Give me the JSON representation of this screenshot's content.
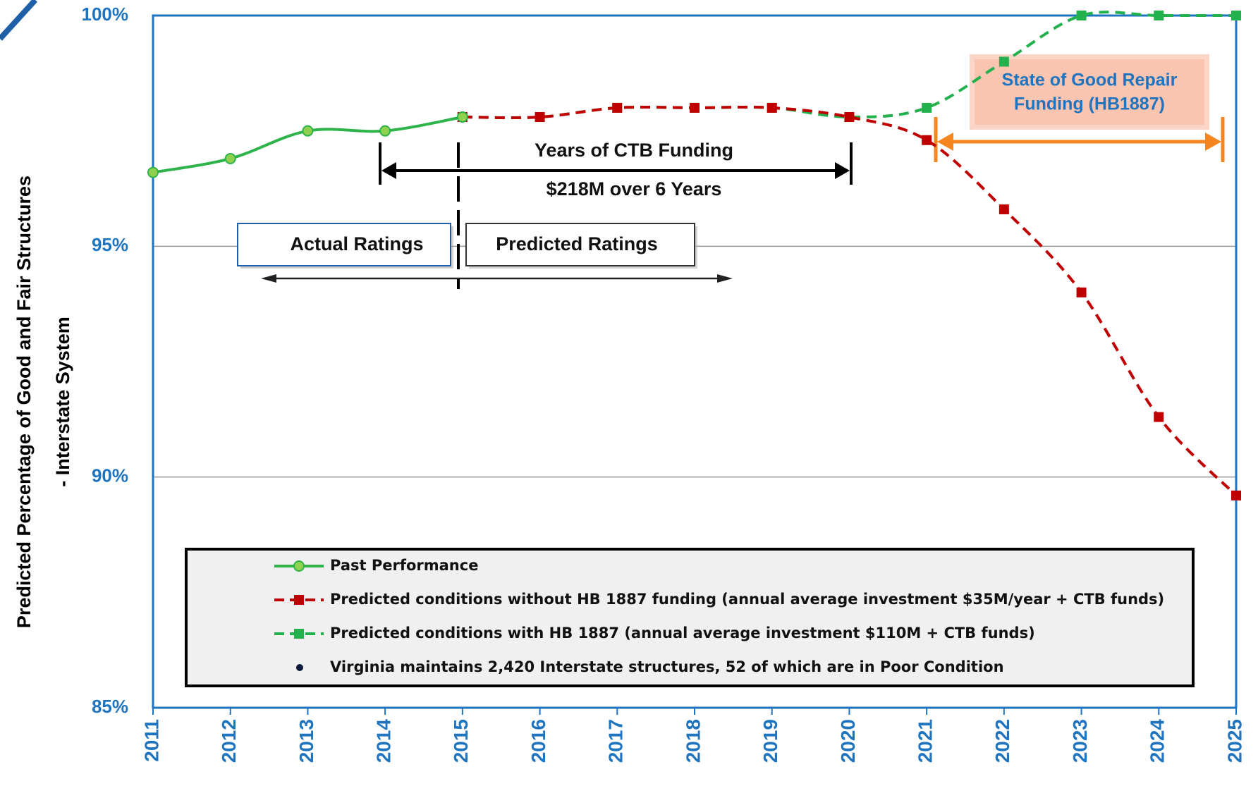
{
  "chart_data": {
    "type": "line",
    "y_label": [
      "Predicted Percentage of Good and Fair Structures",
      "- Interstate System"
    ],
    "x": [
      2011,
      2012,
      2013,
      2014,
      2015,
      2016,
      2017,
      2018,
      2019,
      2020,
      2021,
      2022,
      2023,
      2024,
      2025
    ],
    "xlim": [
      2011,
      2025
    ],
    "xticks": [
      2011,
      2012,
      2013,
      2014,
      2015,
      2016,
      2017,
      2018,
      2019,
      2020,
      2021,
      2022,
      2023,
      2024,
      2025
    ],
    "ylim": [
      85,
      100
    ],
    "yticks": [
      {
        "value": 85,
        "label": "85%"
      },
      {
        "value": 90,
        "label": "90%"
      },
      {
        "value": 95,
        "label": "95%"
      },
      {
        "value": 100,
        "label": "100%"
      }
    ],
    "grid": true,
    "series": [
      {
        "name": "Past Performance",
        "color": "#2db34a",
        "marker": "circle",
        "dashed": false,
        "values": [
          96.6,
          96.9,
          97.5,
          97.5,
          97.8,
          null,
          null,
          null,
          null,
          null,
          null,
          null,
          null,
          null,
          null
        ]
      },
      {
        "name": "Predicted conditions without HB 1887 funding (annual average investment $35M/year + CTB funds)",
        "color": "#c00000",
        "marker": "square",
        "dashed": true,
        "values": [
          null,
          null,
          null,
          null,
          97.8,
          97.8,
          98.0,
          98.0,
          98.0,
          97.8,
          97.3,
          95.8,
          94.0,
          91.3,
          89.6
        ]
      },
      {
        "name": "Predicted conditions with HB 1887 (annual average investment $110M + CTB funds)",
        "color": "#22b14c",
        "marker": "square",
        "dashed": true,
        "values": [
          null,
          null,
          null,
          null,
          97.8,
          97.8,
          98.0,
          98.0,
          98.0,
          97.8,
          98.0,
          99.0,
          100,
          100,
          100
        ]
      }
    ],
    "legend_note": "Virginia maintains 2,420 Interstate structures, 52 of which are in Poor Condition",
    "annotations": {
      "ctb_title": "Years of CTB Funding",
      "ctb_amount": "$218M over 6 Years",
      "actual": "Actual Ratings",
      "predicted": "Predicted Ratings",
      "sgr": [
        "State of Good Repair",
        "Funding (HB1887)"
      ]
    }
  }
}
